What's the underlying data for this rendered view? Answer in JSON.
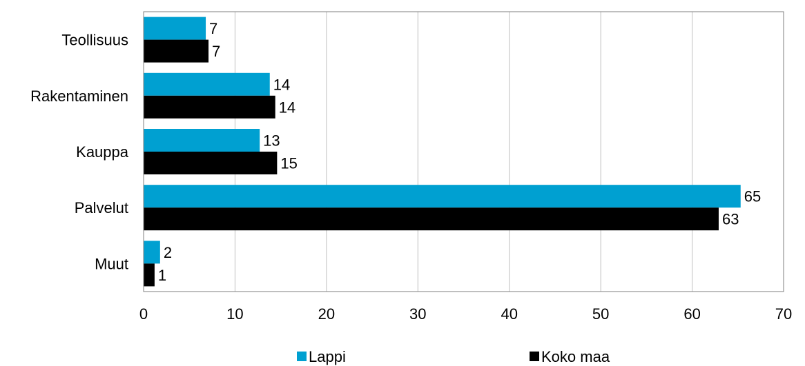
{
  "chart_data": {
    "type": "bar",
    "orientation": "horizontal",
    "categories": [
      "Teollisuus",
      "Rakentaminen",
      "Kauppa",
      "Palvelut",
      "Muut"
    ],
    "series": [
      {
        "name": "Lappi",
        "color": "#00A0D1",
        "values": [
          7,
          14,
          13,
          65,
          2
        ],
        "plot_values": [
          6.8,
          13.8,
          12.7,
          65.3,
          1.8
        ]
      },
      {
        "name": "Koko maa",
        "color": "#000000",
        "values": [
          7,
          14,
          15,
          63,
          1
        ],
        "plot_values": [
          7.1,
          14.4,
          14.6,
          62.9,
          1.2
        ]
      }
    ],
    "xlim": [
      0,
      70
    ],
    "xticks": [
      "0",
      "10",
      "20",
      "30",
      "40",
      "50",
      "60",
      "70"
    ],
    "grid": true,
    "legend_position": "bottom"
  }
}
